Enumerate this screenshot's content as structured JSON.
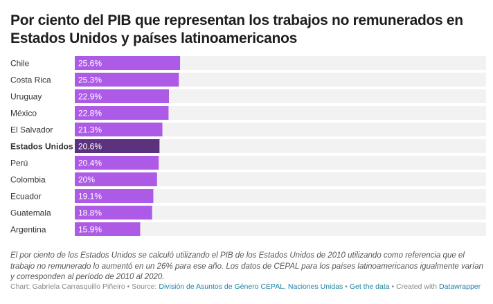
{
  "header": {
    "title": "Por ciento del PIB que representan los trabajos no remunerados en Estados Unidos y países latinoamericanos"
  },
  "colors": {
    "bar": "#ad5be6",
    "highlight": "#5c327e",
    "track": "#f2f2f2",
    "label": "#333333",
    "value_text": "#ffffff",
    "link": "#1d81a2"
  },
  "chart_data": {
    "type": "bar",
    "orientation": "horizontal",
    "title": "Por ciento del PIB que representan los trabajos no remunerados en Estados Unidos y países latinoamericanos",
    "xlabel": "",
    "ylabel": "",
    "xlim": [
      0,
      100
    ],
    "unit": "%",
    "grid": false,
    "categories": [
      "Chile",
      "Costa Rica",
      "Uruguay",
      "México",
      "El Salvador",
      "Estados Unidos",
      "Perú",
      "Colombia",
      "Ecuador",
      "Guatemala",
      "Argentina"
    ],
    "values": [
      25.6,
      25.3,
      22.9,
      22.8,
      21.3,
      20.6,
      20.4,
      20,
      19.1,
      18.8,
      15.9
    ],
    "value_labels": [
      "25.6%",
      "25.3%",
      "22.9%",
      "22.8%",
      "21.3%",
      "20.6%",
      "20.4%",
      "20%",
      "19.1%",
      "18.8%",
      "15.9%"
    ],
    "highlighted": [
      "Estados Unidos"
    ]
  },
  "notes": "El por ciento de los Estados Unidos se calculó utilizando el PIB de los Estados Unidos de 2010 utilizando como referencia que el trabajo no remunerado lo aumentó en un 26% para ese año. Los datos de CEPAL para los países latinoamericanos igualmente varían y corresponden al período de 2010 al 2020.",
  "byline": {
    "chart_prefix": "Chart: Gabriela Carrasquillo Piñeiro • Source: ",
    "source_link": "División de Asuntos de Género CEPAL, Naciones Unidas",
    "sep1": " • ",
    "get_data_link": "Get the data",
    "sep2": " • Created with ",
    "datawrapper_link": "Datawrapper"
  }
}
